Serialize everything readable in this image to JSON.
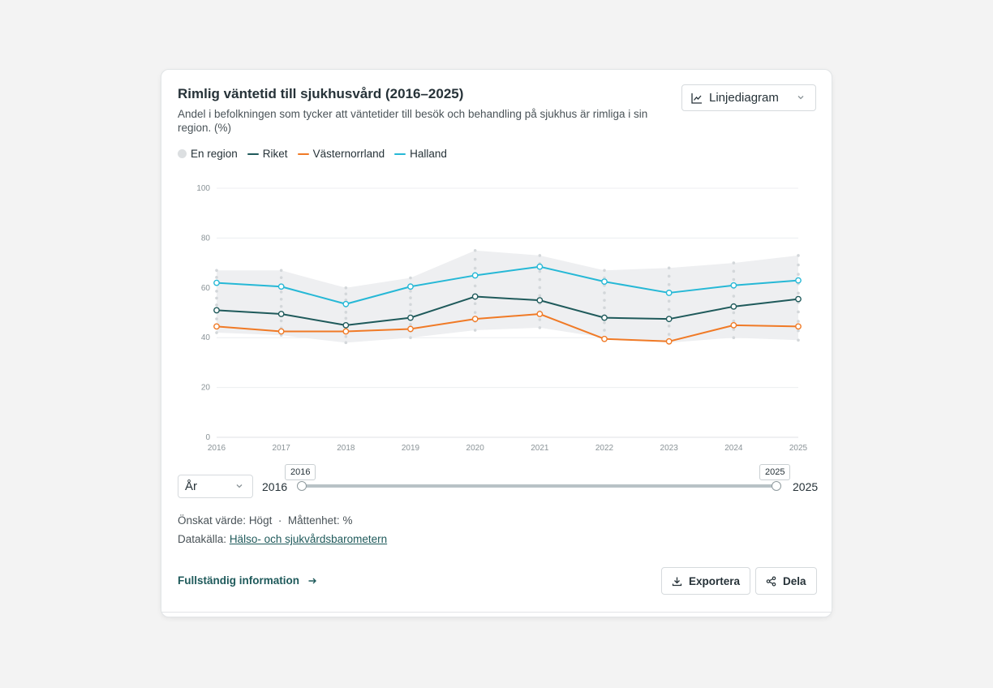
{
  "header": {
    "title": "Rimlig väntetid till sjukhusvård (2016–2025)",
    "subtitle": "Andel i befolkningen som tycker att väntetider till besök och behandling på sjukhus är rimliga i sin region. (%)",
    "chart_type_select": "Linjediagram",
    "chart_type_icon": "line-chart-icon"
  },
  "legend": [
    {
      "label": "En region",
      "color": "#dcdfe1",
      "kind": "dot"
    },
    {
      "label": "Riket",
      "color": "#1f5a5b",
      "kind": "line"
    },
    {
      "label": "Västernorrland",
      "color": "#f07a26",
      "kind": "line"
    },
    {
      "label": "Halland",
      "color": "#26b8d6",
      "kind": "line"
    }
  ],
  "range": {
    "granularity": "År",
    "min_label": "2016",
    "max_label": "2025",
    "start_tip": "2016",
    "end_tip": "2025"
  },
  "meta": {
    "desired_label": "Önskat värde:",
    "desired_value": "Högt",
    "separator": "·",
    "unit_label": "Måttenhet:",
    "unit_value": "%",
    "source_label": "Datakälla:",
    "source_link": "Hälso- och sjukvårdsbarometern"
  },
  "footer": {
    "full_info": "Fullständig information",
    "export_label": "Exportera",
    "share_label": "Dela"
  },
  "chart_data": {
    "type": "line",
    "title": "Rimlig väntetid till sjukhusvård (2016–2025)",
    "x": [
      2016,
      2017,
      2018,
      2019,
      2020,
      2021,
      2022,
      2023,
      2024,
      2025
    ],
    "ylim": [
      0,
      100
    ],
    "yticks": [
      0,
      20,
      40,
      60,
      80,
      100
    ],
    "grid": true,
    "legend_position": "top-left",
    "band": {
      "name": "En region",
      "min": [
        42,
        41,
        38,
        40,
        43,
        44,
        40,
        38,
        40,
        39
      ],
      "max": [
        67,
        67,
        60,
        64,
        75,
        73,
        67,
        68,
        70,
        73
      ]
    },
    "series": [
      {
        "name": "Halland",
        "color": "#26b8d6",
        "values": [
          62,
          60.5,
          53.5,
          60.5,
          65,
          68.5,
          62.5,
          58,
          61,
          63
        ]
      },
      {
        "name": "Riket",
        "color": "#1f5a5b",
        "values": [
          51,
          49.5,
          45,
          48,
          56.5,
          55,
          48,
          47.5,
          52.5,
          55.5
        ]
      },
      {
        "name": "Västernorrland",
        "color": "#f07a26",
        "values": [
          44.5,
          42.5,
          42.5,
          43.5,
          47.5,
          49.5,
          39.5,
          38.5,
          45,
          44.5
        ]
      }
    ]
  }
}
